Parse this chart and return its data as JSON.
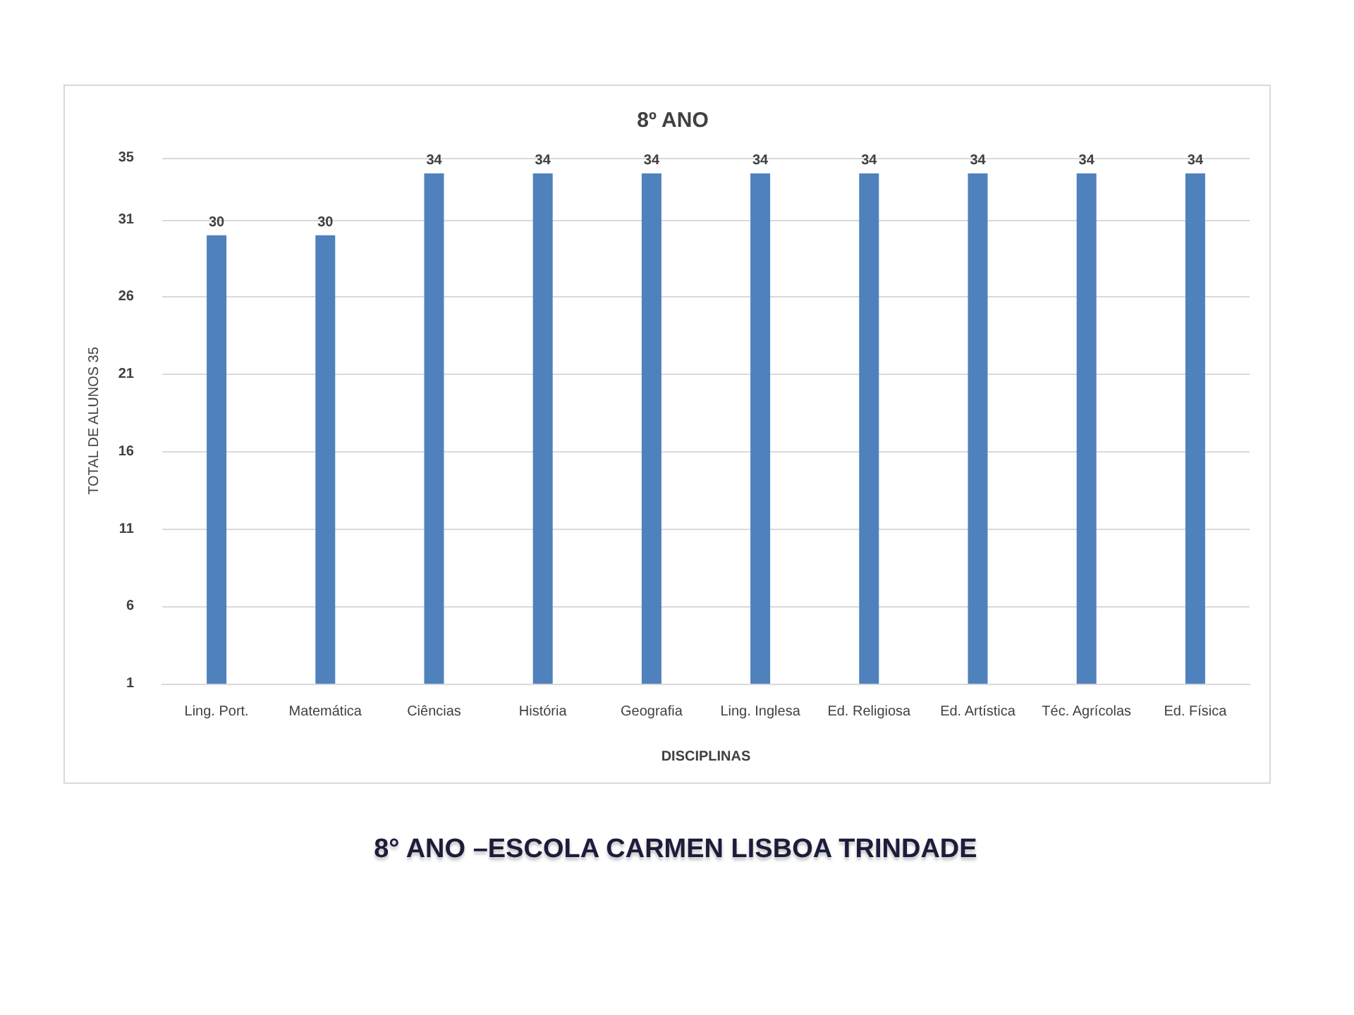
{
  "chart_data": {
    "type": "bar",
    "title": "8º ANO",
    "xlabel": "DISCIPLINAS",
    "ylabel": "TOTAL DE ALUNOS 35",
    "categories": [
      "Ling. Port.",
      "Matemática",
      "Ciências",
      "História",
      "Geografia",
      "Ling. Inglesa",
      "Ed. Religiosa",
      "Ed. Artística",
      "Téc. Agrícolas",
      "Ed. Física"
    ],
    "values": [
      30,
      30,
      34,
      34,
      34,
      34,
      34,
      34,
      34,
      34
    ],
    "color": "#4f81bd",
    "ylim": [
      1,
      35
    ],
    "yticks": [
      1,
      6,
      11,
      16,
      21,
      26,
      31,
      35
    ],
    "grid": "y",
    "data_labels": true,
    "annotations": [
      "8° ANO –ESCOLA CARMEN LISBOA TRINDADE"
    ]
  }
}
